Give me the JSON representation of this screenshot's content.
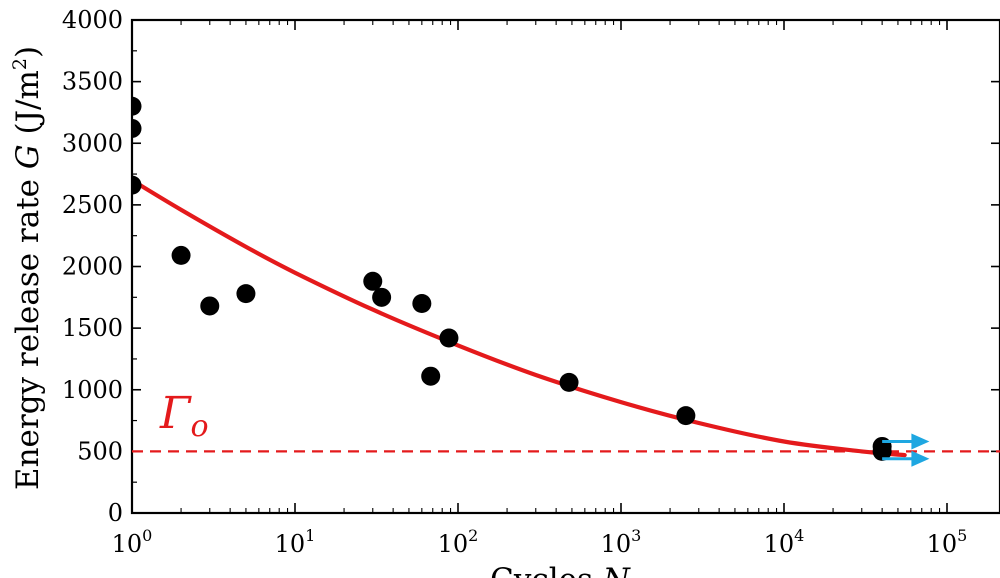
{
  "chart_data": {
    "type": "scatter",
    "title": "",
    "xlabel": "Cycles N",
    "xlabel_plain": "Cycles ",
    "xlabel_var": "N",
    "ylabel_plain": "Energy release rate ",
    "ylabel_var": "G",
    "ylabel_units": " (J/m",
    "ylabel_exp": "2",
    "ylabel_close": ")",
    "xscale": "log",
    "xlim": [
      1,
      100000
    ],
    "ylim": [
      0,
      4000
    ],
    "y_ticks": [
      0,
      500,
      1000,
      1500,
      2000,
      2500,
      3000,
      3500,
      4000
    ],
    "x_ticks": [
      {
        "value": 1,
        "base": "10",
        "exp": "0"
      },
      {
        "value": 10,
        "base": "10",
        "exp": "1"
      },
      {
        "value": 100,
        "base": "10",
        "exp": "2"
      },
      {
        "value": 1000,
        "base": "10",
        "exp": "3"
      },
      {
        "value": 10000,
        "base": "10",
        "exp": "4"
      },
      {
        "value": 100000,
        "base": "10",
        "exp": "5"
      }
    ],
    "points": [
      {
        "x": 1,
        "y": 3300
      },
      {
        "x": 1,
        "y": 3120
      },
      {
        "x": 1,
        "y": 2660
      },
      {
        "x": 2,
        "y": 2090
      },
      {
        "x": 3,
        "y": 1680
      },
      {
        "x": 5,
        "y": 1780
      },
      {
        "x": 30,
        "y": 1880
      },
      {
        "x": 34,
        "y": 1750
      },
      {
        "x": 60,
        "y": 1700
      },
      {
        "x": 68,
        "y": 1110
      },
      {
        "x": 88,
        "y": 1420
      },
      {
        "x": 480,
        "y": 1060
      },
      {
        "x": 2500,
        "y": 790
      },
      {
        "x": 40000,
        "y": 540
      },
      {
        "x": 40000,
        "y": 500
      }
    ],
    "fit_curve": {
      "x": [
        1,
        2,
        5,
        10,
        30,
        100,
        300,
        1000,
        3000,
        10000,
        30000,
        55000
      ],
      "y": [
        2700,
        2460,
        2160,
        1950,
        1650,
        1360,
        1120,
        900,
        730,
        580,
        500,
        470
      ]
    },
    "threshold": {
      "value": 500,
      "label": "Γ",
      "label_sub": "o"
    },
    "runout_arrows": [
      {
        "x_start": 40000,
        "x_end": 78000,
        "y": 580
      },
      {
        "x_start": 40000,
        "x_end": 78000,
        "y": 440
      }
    ],
    "colors": {
      "points": "#000000",
      "fit_curve": "#e41a1c",
      "threshold": "#e41a1c",
      "annotation": "#e41a1c",
      "arrows": "#1ea7e1",
      "axes": "#000000"
    }
  }
}
